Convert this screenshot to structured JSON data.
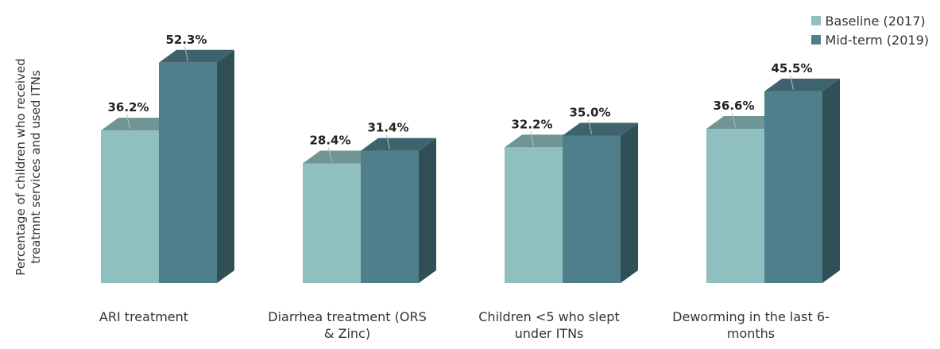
{
  "chart_data": {
    "type": "bar",
    "title": "",
    "ylabel": "Percentage of children who received treatmnt services and used ITNs",
    "ylim": [
      0,
      60
    ],
    "categories": [
      "ARI treatment",
      "Diarrhea treatment (ORS & Zinc)",
      "Children <5 who slept under ITNs",
      "Deworming in the last 6-months"
    ],
    "series": [
      {
        "name": "Baseline (2017)",
        "color": "#8fbfbf",
        "values": [
          36.2,
          28.4,
          32.2,
          36.6
        ],
        "labels": [
          "36.2%",
          "28.4%",
          "32.2%",
          "36.6%"
        ]
      },
      {
        "name": "Mid-term (2019)",
        "color": "#4f7f8a",
        "values": [
          52.3,
          31.4,
          35.0,
          45.5
        ],
        "labels": [
          "52.3%",
          "31.4%",
          "35.0%",
          "45.5%"
        ]
      }
    ],
    "legend_position": "top-right",
    "grid": false
  }
}
